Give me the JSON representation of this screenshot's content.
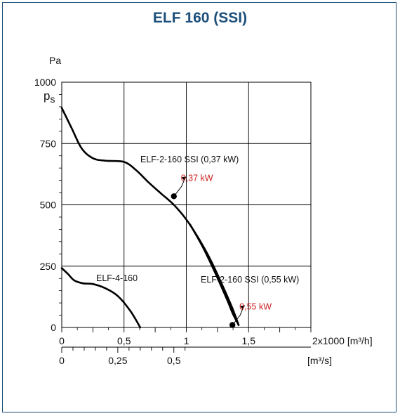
{
  "title": "ELF 160 (SSI)",
  "chart_data": {
    "type": "line",
    "y_unit": "Pa",
    "y_symbol_main": "p",
    "y_symbol_sub": "s",
    "ylim": [
      0,
      1000
    ],
    "y_ticks": [
      {
        "value": 0,
        "label": "0"
      },
      {
        "value": 250,
        "label": "250"
      },
      {
        "value": 500,
        "label": "500"
      },
      {
        "value": 750,
        "label": "750"
      },
      {
        "value": 1000,
        "label": "1000"
      }
    ],
    "xlim": [
      0,
      2
    ],
    "x_ticks": [
      {
        "value": 0,
        "label": "0"
      },
      {
        "value": 0.5,
        "label": "0,5"
      },
      {
        "value": 1,
        "label": "1"
      },
      {
        "value": 1.5,
        "label": "1,5"
      }
    ],
    "x_axis_label": "2x1000 [m³/h]",
    "x2_ticks": [
      {
        "value": 0,
        "label": "0"
      },
      {
        "value": 0.25,
        "label": "0,25"
      },
      {
        "value": 0.5,
        "label": "0,5"
      }
    ],
    "x2_axis_label": "[m³/s]",
    "grid": true,
    "series": [
      {
        "name": "ELF-2-160 SSI (0,37 kW)",
        "color": "#000000",
        "points": [
          [
            0,
            895
          ],
          [
            0.08,
            812
          ],
          [
            0.16,
            730
          ],
          [
            0.25,
            690
          ],
          [
            0.35,
            680
          ],
          [
            0.5,
            675
          ],
          [
            0.6,
            640
          ],
          [
            0.7,
            590
          ],
          [
            0.8,
            545
          ],
          [
            0.9,
            500
          ],
          [
            1.0,
            440
          ],
          [
            1.1,
            362
          ],
          [
            1.2,
            270
          ],
          [
            1.3,
            160
          ],
          [
            1.37,
            78
          ],
          [
            1.42,
            10
          ]
        ],
        "marker": {
          "x": 0.9,
          "y": 535,
          "label": "0,37 kW",
          "label_color": "#cc1f1f"
        }
      },
      {
        "name": "ELF-4-160",
        "color": "#000000",
        "points": [
          [
            0,
            242
          ],
          [
            0.05,
            218
          ],
          [
            0.1,
            192
          ],
          [
            0.17,
            180
          ],
          [
            0.25,
            177
          ],
          [
            0.35,
            160
          ],
          [
            0.45,
            128
          ],
          [
            0.55,
            68
          ],
          [
            0.63,
            0
          ]
        ]
      },
      {
        "name": "ELF-2-160 SSI (0,55 kW)",
        "color": "#000000",
        "points": [
          [
            1.03,
            420
          ],
          [
            1.13,
            330
          ],
          [
            1.23,
            225
          ],
          [
            1.33,
            110
          ],
          [
            1.37,
            60
          ],
          [
            1.42,
            10
          ]
        ],
        "marker": {
          "x": 1.37,
          "y": 10,
          "label": "0,55 kW",
          "label_color": "#cc1f1f"
        }
      }
    ]
  }
}
